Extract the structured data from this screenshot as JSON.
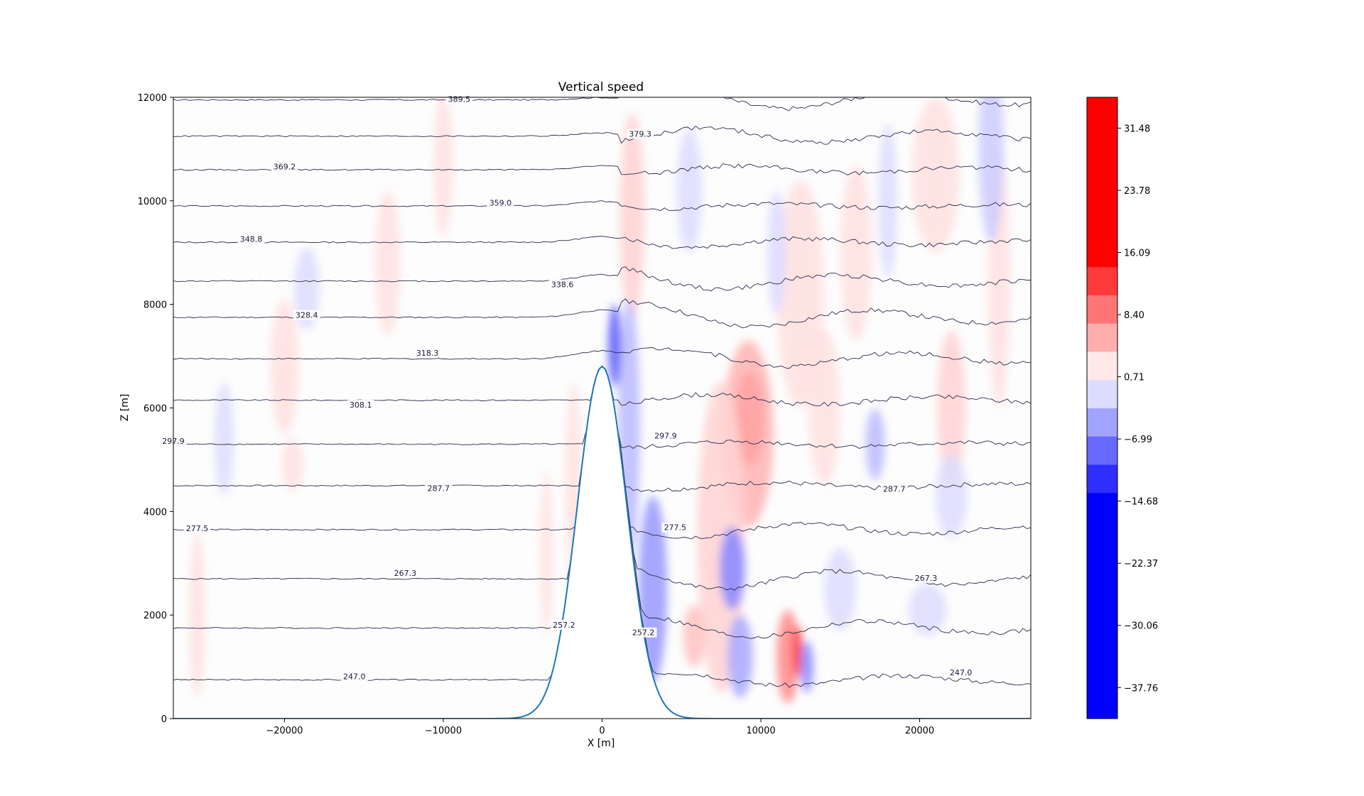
{
  "chart_data": {
    "type": "contour",
    "title": "Vertical speed",
    "xlabel": "X [m]",
    "ylabel": "Z [m]",
    "xlim": [
      -27000,
      27000
    ],
    "ylim": [
      0,
      12000
    ],
    "x_ticks": [
      -20000,
      -10000,
      0,
      10000,
      20000
    ],
    "x_tick_labels": [
      "−20000",
      "−10000",
      "0",
      "10000",
      "20000"
    ],
    "y_ticks": [
      0,
      2000,
      4000,
      6000,
      8000,
      10000,
      12000
    ],
    "y_tick_labels": [
      "0",
      "2000",
      "4000",
      "6000",
      "8000",
      "10000",
      "12000"
    ],
    "terrain": {
      "description": "bell-shaped mountain",
      "peak_x": 0,
      "peak_height": 6800,
      "half_width": 2200
    },
    "colorbar": {
      "colormap": "bwr",
      "colors": {
        "min": "#0000ff",
        "mid": "#ffffff",
        "max": "#ff0000"
      },
      "tick_values": [
        31.48,
        23.78,
        16.09,
        8.4,
        0.71,
        -6.99,
        -14.68,
        -22.37,
        -30.06,
        -37.76
      ],
      "tick_labels": [
        "31.48",
        "23.78",
        "16.09",
        "8.40",
        "0.71",
        "−6.99",
        "−14.68",
        "−22.37",
        "−30.06",
        "−37.76"
      ],
      "range": [
        -41.6,
        35.3
      ]
    },
    "theta_contours": [
      {
        "level": 247.0,
        "base_z": 750
      },
      {
        "level": 257.2,
        "base_z": 1750
      },
      {
        "level": 267.3,
        "base_z": 2700
      },
      {
        "level": 277.5,
        "base_z": 3650
      },
      {
        "level": 287.7,
        "base_z": 4500
      },
      {
        "level": 297.9,
        "base_z": 5300
      },
      {
        "level": 308.1,
        "base_z": 6150
      },
      {
        "level": 318.3,
        "base_z": 6950
      },
      {
        "level": 328.4,
        "base_z": 7750
      },
      {
        "level": 338.6,
        "base_z": 8450
      },
      {
        "level": 348.8,
        "base_z": 9200
      },
      {
        "level": 359.0,
        "base_z": 9900
      },
      {
        "level": 369.2,
        "base_z": 10600
      },
      {
        "level": 379.3,
        "base_z": 11250
      },
      {
        "level": 389.5,
        "base_z": 11950
      }
    ],
    "contour_labels": [
      {
        "text": "369.2",
        "x": -20000,
        "z": 10650
      },
      {
        "text": "379.3",
        "x": 2400,
        "z": 11280
      },
      {
        "text": "389.5",
        "x": -9000,
        "z": 11950
      },
      {
        "text": "359.0",
        "x": -6400,
        "z": 9950
      },
      {
        "text": "348.8",
        "x": -22100,
        "z": 9250
      },
      {
        "text": "338.6",
        "x": -2500,
        "z": 8370
      },
      {
        "text": "328.4",
        "x": -18600,
        "z": 7780
      },
      {
        "text": "318.3",
        "x": -11000,
        "z": 7050
      },
      {
        "text": "308.1",
        "x": -15200,
        "z": 6050
      },
      {
        "text": "297.9",
        "x": -27000,
        "z": 5350
      },
      {
        "text": "297.9",
        "x": 4000,
        "z": 5450
      },
      {
        "text": "287.7",
        "x": -10300,
        "z": 4440
      },
      {
        "text": "287.7",
        "x": 18400,
        "z": 4420
      },
      {
        "text": "277.5",
        "x": -25500,
        "z": 3660
      },
      {
        "text": "277.5",
        "x": 4600,
        "z": 3680
      },
      {
        "text": "267.3",
        "x": -12400,
        "z": 2800
      },
      {
        "text": "267.3",
        "x": 20400,
        "z": 2700
      },
      {
        "text": "257.2",
        "x": -2400,
        "z": 1800
      },
      {
        "text": "257.2",
        "x": 2600,
        "z": 1650
      },
      {
        "text": "247.0",
        "x": -15600,
        "z": 800
      },
      {
        "text": "247.0",
        "x": 22600,
        "z": 880
      }
    ],
    "w_anomalies": [
      {
        "x": 9300,
        "z": 5800,
        "rx": 900,
        "rz": 900,
        "v": 12
      },
      {
        "x": 9200,
        "z": 5500,
        "rx": 1600,
        "rz": 1800,
        "v": 5
      },
      {
        "x": 1900,
        "z": 9700,
        "rx": 800,
        "rz": 2000,
        "v": 3
      },
      {
        "x": -1800,
        "z": 4500,
        "rx": 500,
        "rz": 2000,
        "v": 2
      },
      {
        "x": -3500,
        "z": 3200,
        "rx": 400,
        "rz": 1600,
        "v": 2
      },
      {
        "x": -10000,
        "z": 10700,
        "rx": 600,
        "rz": 1400,
        "v": 2
      },
      {
        "x": -13500,
        "z": 8800,
        "rx": 800,
        "rz": 1400,
        "v": 2
      },
      {
        "x": -20000,
        "z": 6800,
        "rx": 900,
        "rz": 1300,
        "v": 2
      },
      {
        "x": -19500,
        "z": 4900,
        "rx": 700,
        "rz": 500,
        "v": 2
      },
      {
        "x": -25500,
        "z": 2000,
        "rx": 500,
        "rz": 1600,
        "v": 2
      },
      {
        "x": 12500,
        "z": 8200,
        "rx": 1500,
        "rz": 2200,
        "v": 2
      },
      {
        "x": 14000,
        "z": 6000,
        "rx": 1000,
        "rz": 1500,
        "v": 2
      },
      {
        "x": 11700,
        "z": 1200,
        "rx": 700,
        "rz": 900,
        "v": 8
      },
      {
        "x": 12300,
        "z": 1300,
        "rx": 300,
        "rz": 500,
        "v": 14
      },
      {
        "x": 7500,
        "z": 3500,
        "rx": 1500,
        "rz": 3000,
        "v": 3
      },
      {
        "x": 5800,
        "z": 1600,
        "rx": 700,
        "rz": 600,
        "v": 4
      },
      {
        "x": 22000,
        "z": 6000,
        "rx": 900,
        "rz": 1500,
        "v": 3
      },
      {
        "x": 21000,
        "z": 10500,
        "rx": 1500,
        "rz": 1500,
        "v": 2
      },
      {
        "x": 25000,
        "z": 8500,
        "rx": 700,
        "rz": 2500,
        "v": 2
      },
      {
        "x": 16000,
        "z": 9000,
        "rx": 1000,
        "rz": 1700,
        "v": 2
      },
      {
        "x": 1700,
        "z": 5600,
        "rx": 700,
        "rz": 2500,
        "v": -4
      },
      {
        "x": 800,
        "z": 7200,
        "rx": 400,
        "rz": 800,
        "v": -10
      },
      {
        "x": 3200,
        "z": 2500,
        "rx": 900,
        "rz": 1800,
        "v": -6
      },
      {
        "x": 8200,
        "z": 2900,
        "rx": 800,
        "rz": 800,
        "v": -7
      },
      {
        "x": 8700,
        "z": 1200,
        "rx": 800,
        "rz": 800,
        "v": -5
      },
      {
        "x": 12900,
        "z": 1000,
        "rx": 400,
        "rz": 500,
        "v": -7
      },
      {
        "x": -18600,
        "z": 8300,
        "rx": 800,
        "rz": 800,
        "v": -2
      },
      {
        "x": -23800,
        "z": 5400,
        "rx": 600,
        "rz": 1100,
        "v": -2
      },
      {
        "x": 17200,
        "z": 5300,
        "rx": 600,
        "rz": 700,
        "v": -4
      },
      {
        "x": 24500,
        "z": 11000,
        "rx": 800,
        "rz": 1800,
        "v": -3
      },
      {
        "x": 5500,
        "z": 10200,
        "rx": 800,
        "rz": 1200,
        "v": -2
      },
      {
        "x": 22000,
        "z": 4300,
        "rx": 1000,
        "rz": 800,
        "v": -2
      },
      {
        "x": 15000,
        "z": 2500,
        "rx": 1000,
        "rz": 800,
        "v": -2
      },
      {
        "x": 18000,
        "z": 10000,
        "rx": 600,
        "rz": 1500,
        "v": -2
      },
      {
        "x": 11000,
        "z": 9000,
        "rx": 600,
        "rz": 1200,
        "v": -2
      },
      {
        "x": 20500,
        "z": 2100,
        "rx": 1200,
        "rz": 500,
        "v": -2
      }
    ]
  }
}
